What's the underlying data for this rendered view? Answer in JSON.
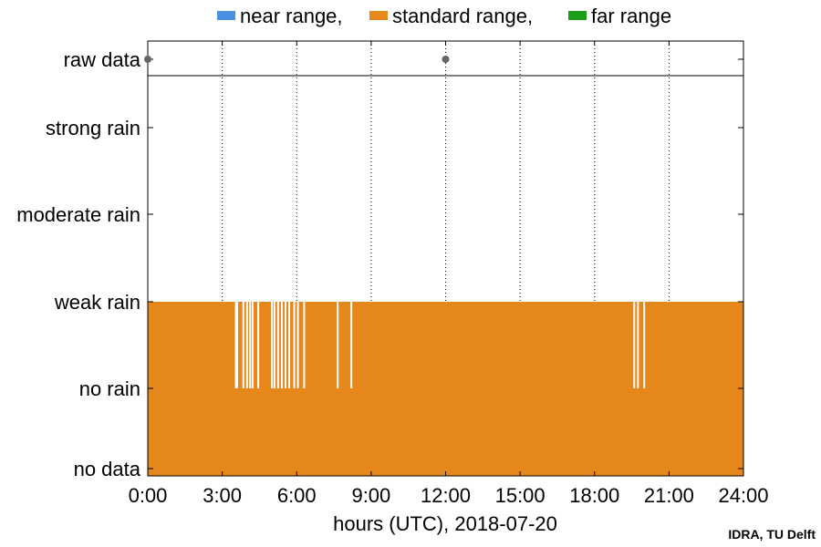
{
  "chart_data": {
    "type": "bar",
    "legend": {
      "placement": "top-center",
      "entries": [
        {
          "label": "near range,",
          "color": "#4a90e2"
        },
        {
          "label": "standard range,",
          "color": "#e6871c"
        },
        {
          "label": "far range",
          "color": "#1a9e1a"
        }
      ]
    },
    "xlabel": "hours (UTC), 2018-07-20",
    "xlim": [
      0,
      24
    ],
    "x_ticks": [
      {
        "value": 0,
        "label": "0:00"
      },
      {
        "value": 3,
        "label": "3:00"
      },
      {
        "value": 6,
        "label": "6:00"
      },
      {
        "value": 9,
        "label": "9:00"
      },
      {
        "value": 12,
        "label": "12:00"
      },
      {
        "value": 15,
        "label": "15:00"
      },
      {
        "value": 18,
        "label": "18:00"
      },
      {
        "value": 21,
        "label": "21:00"
      },
      {
        "value": 24,
        "label": "24:00"
      }
    ],
    "y_categories": [
      "no data",
      "no rain",
      "weak rain",
      "moderate rain",
      "strong rain"
    ],
    "raw_data_row": {
      "label": "raw data",
      "points": [
        0,
        12
      ]
    },
    "grid": "vertical dotted at x ticks",
    "series": [
      {
        "name": "standard range",
        "color": "#e6871c",
        "baseline_level": "weak rain",
        "dip_level": "no rain",
        "dip_hours": [
          3.55,
          3.6,
          3.85,
          4.0,
          4.12,
          4.22,
          4.45,
          5.0,
          5.1,
          5.25,
          5.4,
          5.55,
          5.7,
          5.9,
          6.05,
          6.3,
          7.65,
          8.2,
          19.6,
          19.75,
          20.0
        ]
      }
    ]
  },
  "credit": "IDRA, TU Delft"
}
